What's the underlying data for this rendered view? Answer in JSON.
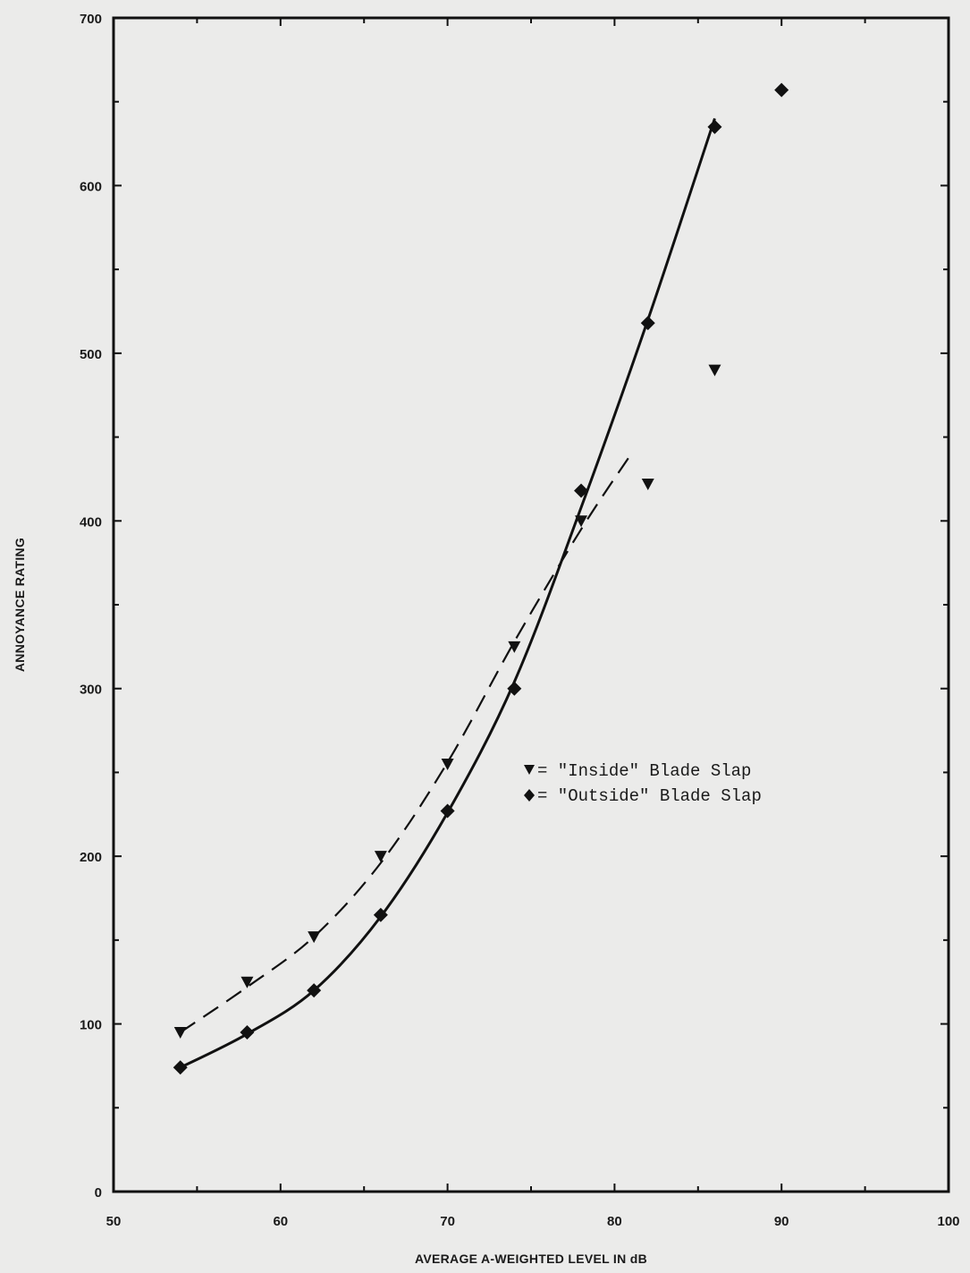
{
  "chart_data": {
    "type": "scatter",
    "xlabel": "AVERAGE A-WEIGHTED LEVEL IN dB",
    "ylabel": "ANNOYANCE RATING",
    "xlim": [
      50,
      100
    ],
    "ylim": [
      0,
      700
    ],
    "x_ticks": [
      50,
      60,
      70,
      80,
      90,
      100
    ],
    "y_ticks": [
      0,
      100,
      200,
      300,
      400,
      500,
      600,
      700
    ],
    "grid": false,
    "legend_position": "center-right",
    "series": [
      {
        "name": "\"Inside\" Blade Slap",
        "marker": "triangle-down",
        "line_style": "dashed",
        "x": [
          54,
          58,
          62,
          66,
          70,
          74,
          78,
          82,
          86
        ],
        "y": [
          95,
          125,
          152,
          200,
          255,
          325,
          400,
          422,
          490
        ],
        "fit_x": [
          54,
          58,
          62,
          66,
          70,
          74,
          78,
          81
        ],
        "fit_y": [
          95,
          122,
          152,
          196,
          256,
          328,
          395,
          440
        ]
      },
      {
        "name": "\"Outside\" Blade Slap",
        "marker": "diamond",
        "line_style": "solid",
        "x": [
          54,
          58,
          62,
          66,
          70,
          74,
          78,
          82,
          86,
          90
        ],
        "y": [
          74,
          95,
          120,
          165,
          227,
          300,
          418,
          518,
          635,
          657
        ],
        "fit_x": [
          54,
          58,
          62,
          66,
          70,
          74,
          78,
          82,
          86
        ],
        "fit_y": [
          74,
          94,
          120,
          164,
          226,
          304,
          408,
          520,
          640
        ]
      }
    ],
    "legend": [
      {
        "symbol": "▼",
        "label": "= \"Inside\" Blade Slap"
      },
      {
        "symbol": "◆",
        "label": "= \"Outside\" Blade Slap"
      }
    ]
  }
}
